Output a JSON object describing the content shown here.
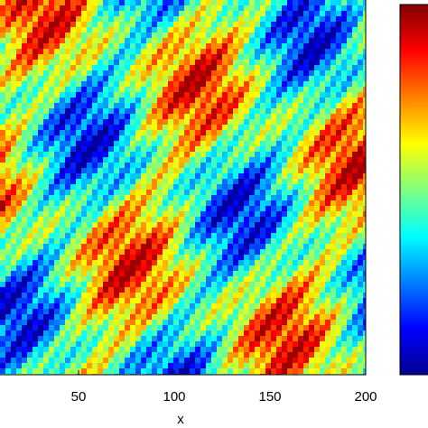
{
  "chart_data": {
    "type": "heatmap",
    "x_label": "x",
    "xlim": [
      0,
      200
    ],
    "xticks": [
      50,
      100,
      150,
      200
    ],
    "colormap": "jet"
  }
}
